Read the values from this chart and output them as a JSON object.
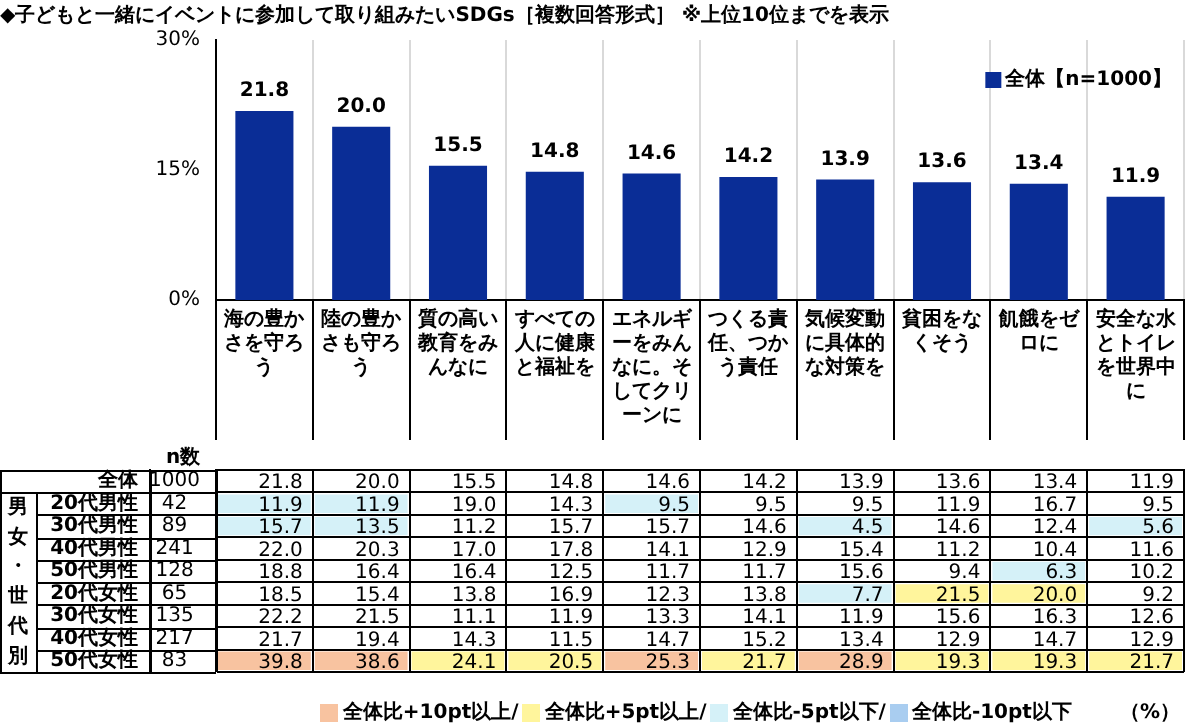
{
  "chart_data": [
    {
      "type": "bar",
      "title": "◆子どもと一緒にイベントに参加して取り組みたいSDGs［複数回答形式］ ※上位10位までを表示",
      "categories": [
        "海の豊かさを守ろう",
        "陸の豊かさも守ろう",
        "質の高い教育をみんなに",
        "すべての人に健康と福祉を",
        "エネルギーをみんなに。そしてクリーンに",
        "つくる責任、つかう責任",
        "気候変動に具体的な対策を",
        "貧困をなくそう",
        "飢餓をゼロに",
        "安全な水とトイレを世界中に"
      ],
      "series": [
        {
          "name": "全体【n=1000】",
          "color": "#0a2d96",
          "values": [
            21.8,
            20.0,
            15.5,
            14.8,
            14.6,
            14.2,
            13.9,
            13.6,
            13.4,
            11.9
          ]
        }
      ],
      "value_labels": [
        "21.8",
        "20.0",
        "15.5",
        "14.8",
        "14.6",
        "14.2",
        "13.9",
        "13.6",
        "13.4",
        "11.9"
      ],
      "ylim": [
        0,
        30
      ],
      "yticks": [
        {
          "value": 0,
          "label": "0%"
        },
        {
          "value": 15,
          "label": "15%"
        },
        {
          "value": 30,
          "label": "30%"
        }
      ],
      "grid": "x",
      "legend": "top right"
    },
    {
      "type": "heatmap",
      "ylabel": "男女・世代別",
      "y2label": "n数",
      "categories": [
        null,
        null,
        null,
        null,
        null,
        null,
        null,
        null,
        null,
        null
      ],
      "y_categories": [
        "全体",
        "20代男性",
        "30代男性",
        "40代男性",
        "50代男性",
        "20代女性",
        "30代女性",
        "40代女性",
        "50代女性"
      ],
      "y2_categories": [
        "1000",
        "42",
        "89",
        "241",
        "128",
        "65",
        "135",
        "217",
        "83"
      ],
      "cells": [
        [
          21.8,
          20.0,
          15.5,
          14.8,
          14.6,
          14.2,
          13.9,
          13.6,
          13.4,
          11.9
        ],
        [
          11.9,
          11.9,
          19.0,
          14.3,
          9.5,
          9.5,
          9.5,
          11.9,
          16.7,
          9.5
        ],
        [
          15.7,
          13.5,
          11.2,
          15.7,
          15.7,
          14.6,
          4.5,
          14.6,
          12.4,
          5.6
        ],
        [
          22.0,
          20.3,
          17.0,
          17.8,
          14.1,
          12.9,
          15.4,
          11.2,
          10.4,
          11.6
        ],
        [
          18.8,
          16.4,
          16.4,
          12.5,
          11.7,
          11.7,
          15.6,
          9.4,
          6.3,
          10.2
        ],
        [
          18.5,
          15.4,
          13.8,
          16.9,
          12.3,
          13.8,
          7.7,
          21.5,
          20.0,
          9.2
        ],
        [
          22.2,
          21.5,
          11.1,
          11.9,
          13.3,
          14.1,
          11.9,
          15.6,
          16.3,
          12.6
        ],
        [
          21.7,
          19.4,
          14.3,
          11.5,
          14.7,
          15.2,
          13.4,
          12.9,
          14.7,
          12.9
        ],
        [
          39.8,
          38.6,
          24.1,
          20.5,
          25.3,
          21.7,
          28.9,
          19.3,
          19.3,
          21.7
        ]
      ],
      "colors": [
        [
          null,
          null,
          null,
          null,
          null,
          null,
          null,
          null,
          null,
          null
        ],
        [
          "#d5f1f8",
          "#d5f1f8",
          null,
          null,
          "#d5f1f8",
          null,
          null,
          null,
          null,
          null
        ],
        [
          "#d5f1f8",
          "#d5f1f8",
          null,
          null,
          null,
          null,
          "#d5f1f8",
          null,
          null,
          "#d5f1f8"
        ],
        [
          null,
          null,
          null,
          null,
          null,
          null,
          null,
          null,
          null,
          null
        ],
        [
          null,
          null,
          null,
          null,
          null,
          null,
          null,
          null,
          "#d5f1f8",
          null
        ],
        [
          null,
          null,
          null,
          null,
          null,
          null,
          "#d5f1f8",
          "#fff59c",
          "#fff59c",
          null
        ],
        [
          null,
          null,
          null,
          null,
          null,
          null,
          null,
          null,
          null,
          null
        ],
        [
          null,
          null,
          null,
          null,
          null,
          null,
          null,
          null,
          null,
          null
        ],
        [
          "#f8c3a0",
          "#f8c3a0",
          "#fff59c",
          "#fff59c",
          "#f8c3a0",
          "#fff59c",
          "#f8c3a0",
          "#fff59c",
          "#fff59c",
          "#fff59c"
        ]
      ],
      "series": [
        {
          "name": "全体比+10pt以上/",
          "color": "#f8c3a0",
          "values": [
            null,
            null,
            null,
            null,
            null,
            null,
            null,
            null,
            null,
            null
          ]
        },
        {
          "name": "全体比+5pt以上/",
          "color": "#fff59c",
          "values": [
            null,
            null,
            null,
            null,
            null,
            null,
            null,
            null,
            null,
            null
          ]
        },
        {
          "name": "全体比-5pt以下/",
          "color": "#d5f1f8",
          "values": [
            null,
            null,
            null,
            null,
            null,
            null,
            null,
            null,
            null,
            null
          ]
        },
        {
          "name": "全体比-10pt以下",
          "color": "#a9cdf0",
          "values": [
            null,
            null,
            null,
            null,
            null,
            null,
            null,
            null,
            null,
            null
          ]
        }
      ],
      "cell_labels": [
        [
          "21.8",
          "20.0",
          "15.5",
          "14.8",
          "14.6",
          "14.2",
          "13.9",
          "13.6",
          "13.4",
          "11.9"
        ],
        [
          "11.9",
          "11.9",
          "19.0",
          "14.3",
          "9.5",
          "9.5",
          "9.5",
          "11.9",
          "16.7",
          "9.5"
        ],
        [
          "15.7",
          "13.5",
          "11.2",
          "15.7",
          "15.7",
          "14.6",
          "4.5",
          "14.6",
          "12.4",
          "5.6"
        ],
        [
          "22.0",
          "20.3",
          "17.0",
          "17.8",
          "14.1",
          "12.9",
          "15.4",
          "11.2",
          "10.4",
          "11.6"
        ],
        [
          "18.8",
          "16.4",
          "16.4",
          "12.5",
          "11.7",
          "11.7",
          "15.6",
          "9.4",
          "6.3",
          "10.2"
        ],
        [
          "18.5",
          "15.4",
          "13.8",
          "16.9",
          "12.3",
          "13.8",
          "7.7",
          "21.5",
          "20.0",
          "9.2"
        ],
        [
          "22.2",
          "21.5",
          "11.1",
          "11.9",
          "13.3",
          "14.1",
          "11.9",
          "15.6",
          "16.3",
          "12.6"
        ],
        [
          "21.7",
          "19.4",
          "14.3",
          "11.5",
          "14.7",
          "15.2",
          "13.4",
          "12.9",
          "14.7",
          "12.9"
        ],
        [
          "39.8",
          "38.6",
          "24.1",
          "20.5",
          "25.3",
          "21.7",
          "28.9",
          "19.3",
          "19.3",
          "21.7"
        ]
      ],
      "legend": "bottom right",
      "data_labels": true,
      "grid": true,
      "annotations": [
        "（%）"
      ]
    }
  ]
}
